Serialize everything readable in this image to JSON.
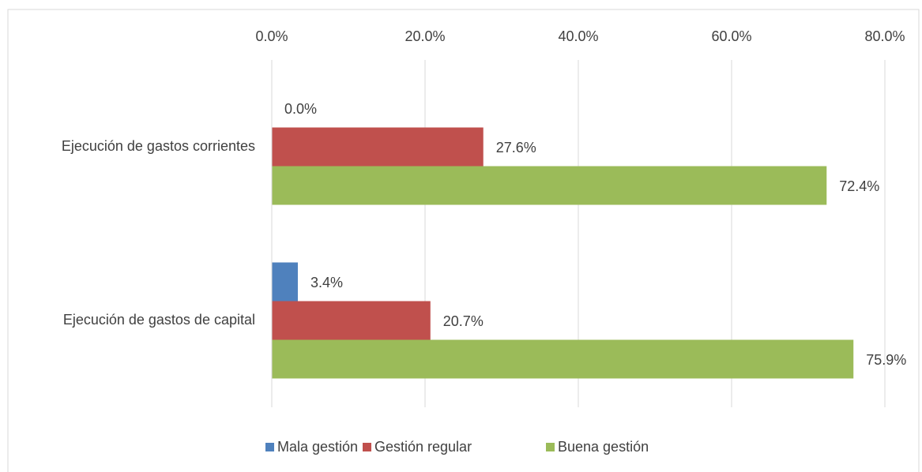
{
  "chart_data": {
    "type": "barh",
    "categories": [
      "Ejecución de gastos corrientes",
      "Ejecución de gastos de capital"
    ],
    "series": [
      {
        "name": "Mala gestión",
        "color": "#4f81bd",
        "values": [
          0.0,
          3.4
        ],
        "value_labels": [
          "0.0%",
          "3.4%"
        ]
      },
      {
        "name": "Gestión regular",
        "color": "#c0504d",
        "values": [
          27.6,
          20.7
        ],
        "value_labels": [
          "27.6%",
          "20.7%"
        ]
      },
      {
        "name": "Buena gestión",
        "color": "#9bbb59",
        "values": [
          72.4,
          75.9
        ],
        "value_labels": [
          "72.4%",
          "75.9%"
        ]
      }
    ],
    "xlim": [
      0,
      80
    ],
    "xticks": [
      {
        "value": 0,
        "label": "0.0%"
      },
      {
        "value": 20,
        "label": "20.0%"
      },
      {
        "value": 40,
        "label": "40.0%"
      },
      {
        "value": 60,
        "label": "60.0%"
      },
      {
        "value": 80,
        "label": "80.0%"
      }
    ],
    "grid": true,
    "legend": "bottom"
  }
}
